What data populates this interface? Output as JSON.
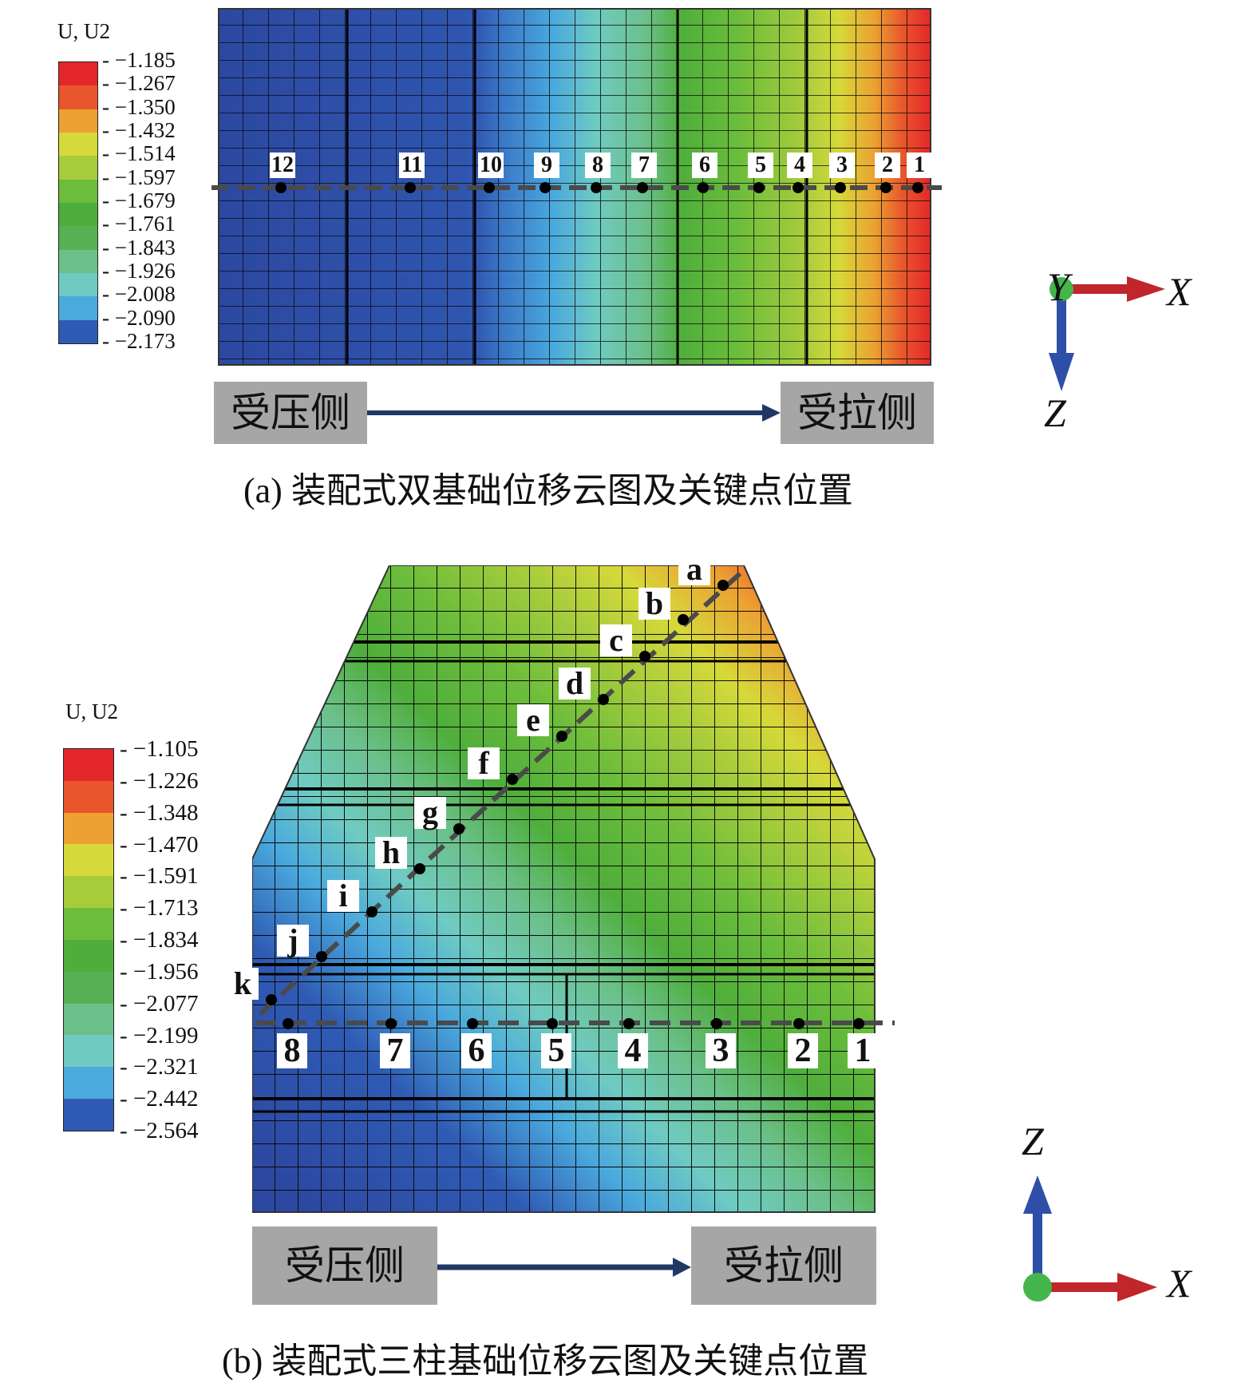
{
  "panel_a": {
    "legend": {
      "title": "U, U2",
      "values": [
        "−1.185",
        "−1.267",
        "−1.350",
        "−1.432",
        "−1.514",
        "−1.597",
        "−1.679",
        "−1.761",
        "−1.843",
        "−1.926",
        "−2.008",
        "−2.090",
        "−2.173"
      ],
      "colors": [
        "#e3262a",
        "#e9562b",
        "#eca132",
        "#d6d93a",
        "#a6cc3c",
        "#6cbd3b",
        "#4fae3b",
        "#57b052",
        "#6bc08a",
        "#6fcbc1",
        "#4aa9dd",
        "#2f5bb4",
        "#2d48a1"
      ]
    },
    "point_labels": [
      "12",
      "11",
      "10",
      "9",
      "8",
      "7",
      "6",
      "5",
      "4",
      "3",
      "2",
      "1"
    ],
    "left_label": "受压侧",
    "right_label": "受拉侧",
    "caption": "(a) 装配式双基础位移云图及关键点位置",
    "axes": {
      "x": "X",
      "y": "Y",
      "z": "Z"
    }
  },
  "panel_b": {
    "legend": {
      "title": "U, U2",
      "values": [
        "−1.105",
        "−1.226",
        "−1.348",
        "−1.470",
        "−1.591",
        "−1.713",
        "−1.834",
        "−1.956",
        "−2.077",
        "−2.199",
        "−2.321",
        "−2.442",
        "−2.564"
      ],
      "colors": [
        "#e3262a",
        "#e9562b",
        "#eca132",
        "#d6d93a",
        "#a6cc3c",
        "#6cbd3b",
        "#4fae3b",
        "#57b052",
        "#6bc08a",
        "#6fcbc1",
        "#4aa9dd",
        "#2f5bb4",
        "#2d48a1"
      ]
    },
    "diag_labels": [
      "a",
      "b",
      "c",
      "d",
      "e",
      "f",
      "g",
      "h",
      "i",
      "j",
      "k"
    ],
    "point_labels": [
      "8",
      "7",
      "6",
      "5",
      "4",
      "3",
      "2",
      "1"
    ],
    "left_label": "受压侧",
    "right_label": "受拉侧",
    "caption": "(b) 装配式三柱基础位移云图及关键点位置",
    "axes": {
      "x": "X",
      "z": "Z"
    }
  }
}
